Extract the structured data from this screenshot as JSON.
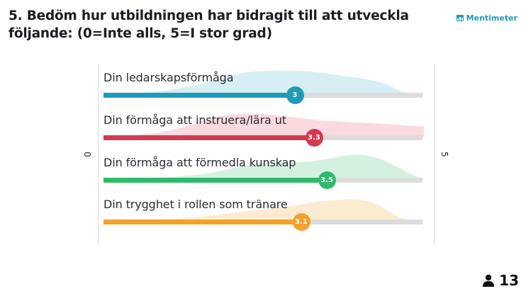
{
  "question": {
    "title": "5. Bedöm hur utbildningen har bidragit till att utveckla följande: (0=Inte alls, 5=I stor grad)"
  },
  "brand": {
    "name": "Mentimeter",
    "color": "#1d9bb8"
  },
  "scale": {
    "min_label": "0",
    "max_label": "5",
    "min": 0,
    "max": 5
  },
  "statements": [
    {
      "label": "Din ledarskapsförmåga",
      "value": 3,
      "display": "3",
      "color": "#1d9bb8",
      "curve_color": "#d6eef4"
    },
    {
      "label": "Din förmåga att instruera/lära ut",
      "value": 3.3,
      "display": "3.3",
      "color": "#d43a4f",
      "curve_color": "#fadadf"
    },
    {
      "label": "Din förmåga att förmedla kunskap",
      "value": 3.5,
      "display": "3.5",
      "color": "#2dbb6a",
      "curve_color": "#d4f1e0"
    },
    {
      "label": "Din trygghet i rollen som tränare",
      "value": 3.1,
      "display": "3.1",
      "color": "#f3a02c",
      "curve_color": "#fcebd0"
    }
  ],
  "respondents": {
    "count": "13",
    "icon": "person-icon"
  }
}
